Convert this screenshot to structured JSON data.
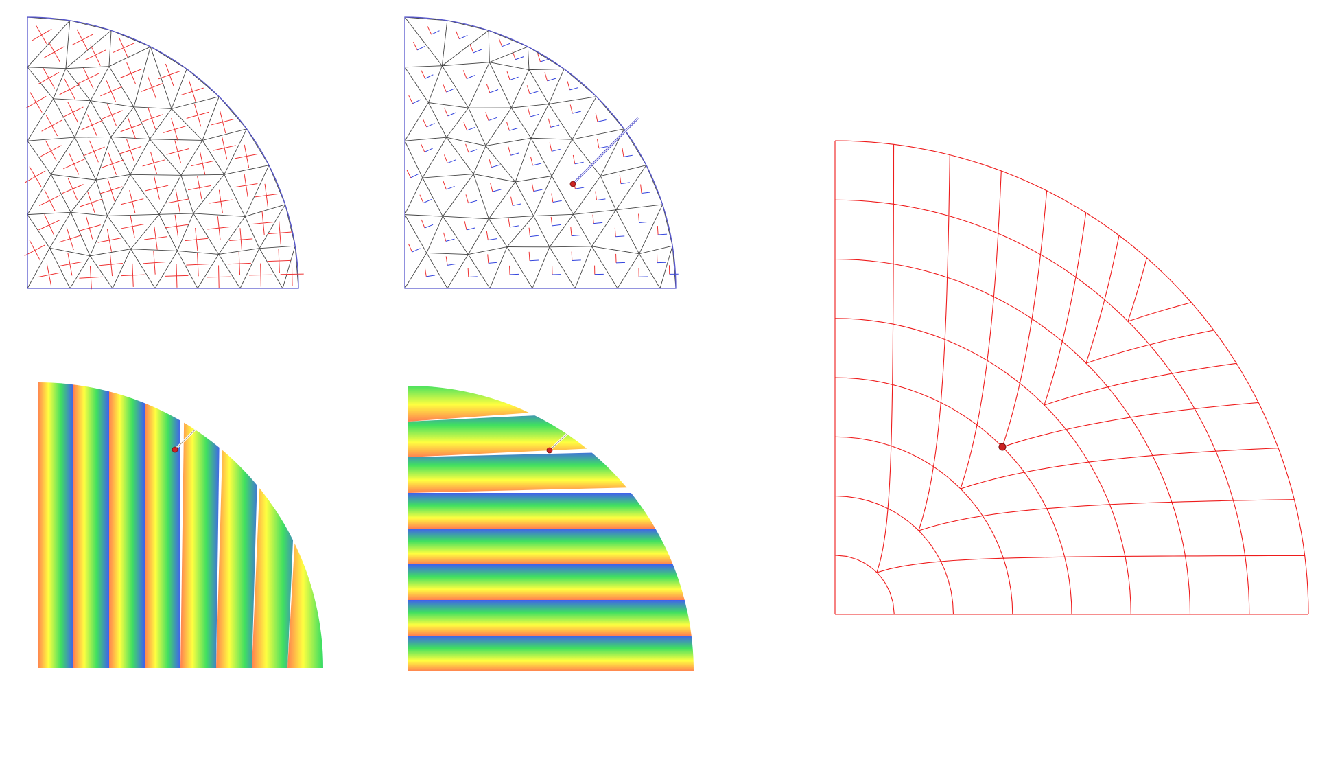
{
  "figure": {
    "panels": [
      {
        "id": "tri-mesh-cross-field",
        "cross_color": "#ee3333",
        "edge_color": "#444444",
        "boundary_color": "#5555cc"
      },
      {
        "id": "tri-mesh-frame-field-with-cut",
        "frame_colors": [
          "#ee3333",
          "#3344dd"
        ],
        "edge_color": "#444444",
        "boundary_color": "#5555cc",
        "singularity_color": "#cc2222"
      },
      {
        "id": "stripe-parametrization-u",
        "palette": [
          "#ff7f50",
          "#ffff40",
          "#40e060",
          "#4060ee"
        ]
      },
      {
        "id": "stripe-parametrization-v",
        "palette": [
          "#ff7f50",
          "#ffff40",
          "#40e060",
          "#4060ee"
        ]
      },
      {
        "id": "quad-mesh-result",
        "line_color": "#ee1c1c",
        "singularity_color": "#cc2222"
      }
    ]
  }
}
